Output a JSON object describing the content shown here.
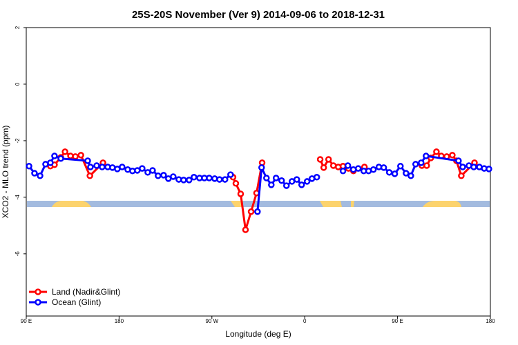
{
  "chart_data": {
    "type": "line",
    "title": "25S-20S November (Ver 9)   2014-09-06 to 2018-12-31",
    "xlabel": "Longitude (deg E)",
    "ylabel": "XCO2 - MLO trend (ppm)",
    "xlim": [
      90,
      540
    ],
    "xticks": [
      {
        "value": 90,
        "label": "90 E"
      },
      180,
      {
        "value": 270,
        "label": "90 W"
      },
      {
        "value": 360,
        "label": "0"
      },
      {
        "value": 450,
        "label": "90 E"
      },
      {
        "value": 540,
        "label": "180"
      }
    ],
    "ylim": [
      -8.2,
      2
    ],
    "yticks": [
      2,
      0,
      -2,
      -4,
      -6
    ],
    "legend": "bottom-left",
    "series": [
      {
        "name": "Land (Nadir&Glint)",
        "color": "#ff0000",
        "x": [
          113.4,
          117.4,
          123.5,
          127.6,
          132.9,
          137.6,
          143.0,
          151.7,
          164.4,
          null,
          290.5,
          293.2,
          297.9,
          302.6,
          308.0,
          313.3,
          318.7,
          null,
          375.0,
          378.4,
          383.1,
          387.8,
          392.5,
          397.1,
          402.5,
          407.2,
          417.9,
          null,
          473.6,
          478.3,
          482.3,
          487.7,
          492.4,
          497.7,
          503.1,
          507.1,
          511.8,
          524.6
        ],
        "values": [
          -2.9,
          -2.85,
          -2.59,
          -2.39,
          -2.54,
          -2.56,
          -2.51,
          -3.24,
          -2.78,
          null,
          -3.29,
          -3.51,
          -3.88,
          -5.15,
          -4.51,
          -3.85,
          -2.78,
          null,
          -2.66,
          -2.95,
          -2.66,
          -2.88,
          -2.93,
          -2.9,
          -2.98,
          -3.07,
          -2.93,
          null,
          -2.88,
          -2.88,
          -2.61,
          -2.39,
          -2.54,
          -2.56,
          -2.51,
          -2.71,
          -3.24,
          -2.78
        ]
      },
      {
        "name": "Ocean (Glint)",
        "color": "#0000ff",
        "x": [
          92.7,
          98.0,
          103.4,
          108.7,
          113.4,
          117.4,
          123.5,
          149.6,
          152.2,
          158.3,
          163.6,
          169.0,
          173.6,
          178.3,
          183.0,
          188.4,
          193.0,
          197.7,
          202.4,
          207.8,
          212.5,
          217.8,
          223.2,
          227.8,
          232.5,
          237.9,
          242.6,
          247.9,
          252.6,
          258.0,
          262.7,
          267.4,
          272.7,
          277.4,
          282.7,
          288.1,
          null,
          314.2,
          318.2,
          322.9,
          327.6,
          332.2,
          337.6,
          342.3,
          347.6,
          352.3,
          357.0,
          362.3,
          367.0,
          371.7,
          null,
          397.1,
          401.8,
          407.2,
          411.9,
          417.2,
          421.9,
          426.6,
          431.9,
          436.6,
          442.0,
          447.3,
          452.8,
          458.2,
          462.9,
          467.5,
          472.9,
          477.6,
          509.1,
          513.2,
          519.2,
          523.9,
          529.3,
          534.0,
          538.6
        ],
        "values": [
          -2.9,
          -3.15,
          -3.24,
          -2.83,
          -2.78,
          -2.54,
          -2.63,
          -2.71,
          -2.93,
          -2.88,
          -2.93,
          -2.93,
          -2.95,
          -3.0,
          -2.93,
          -3.02,
          -3.07,
          -3.05,
          -2.98,
          -3.12,
          -3.05,
          -3.24,
          -3.22,
          -3.34,
          -3.27,
          -3.37,
          -3.39,
          -3.39,
          -3.29,
          -3.32,
          -3.32,
          -3.32,
          -3.34,
          -3.37,
          -3.37,
          -3.2,
          null,
          -4.51,
          -2.95,
          -3.32,
          -3.56,
          -3.32,
          -3.41,
          -3.59,
          -3.44,
          -3.37,
          -3.56,
          -3.44,
          -3.34,
          -3.29,
          null,
          -3.07,
          -2.88,
          -3.02,
          -2.98,
          -3.07,
          -3.07,
          -3.02,
          -2.93,
          -2.95,
          -3.12,
          -3.17,
          -2.9,
          -3.15,
          -3.24,
          -2.83,
          -2.78,
          -2.54,
          -2.71,
          -2.93,
          -2.88,
          -2.93,
          -2.93,
          -2.98,
          -3.0
        ]
      }
    ]
  }
}
